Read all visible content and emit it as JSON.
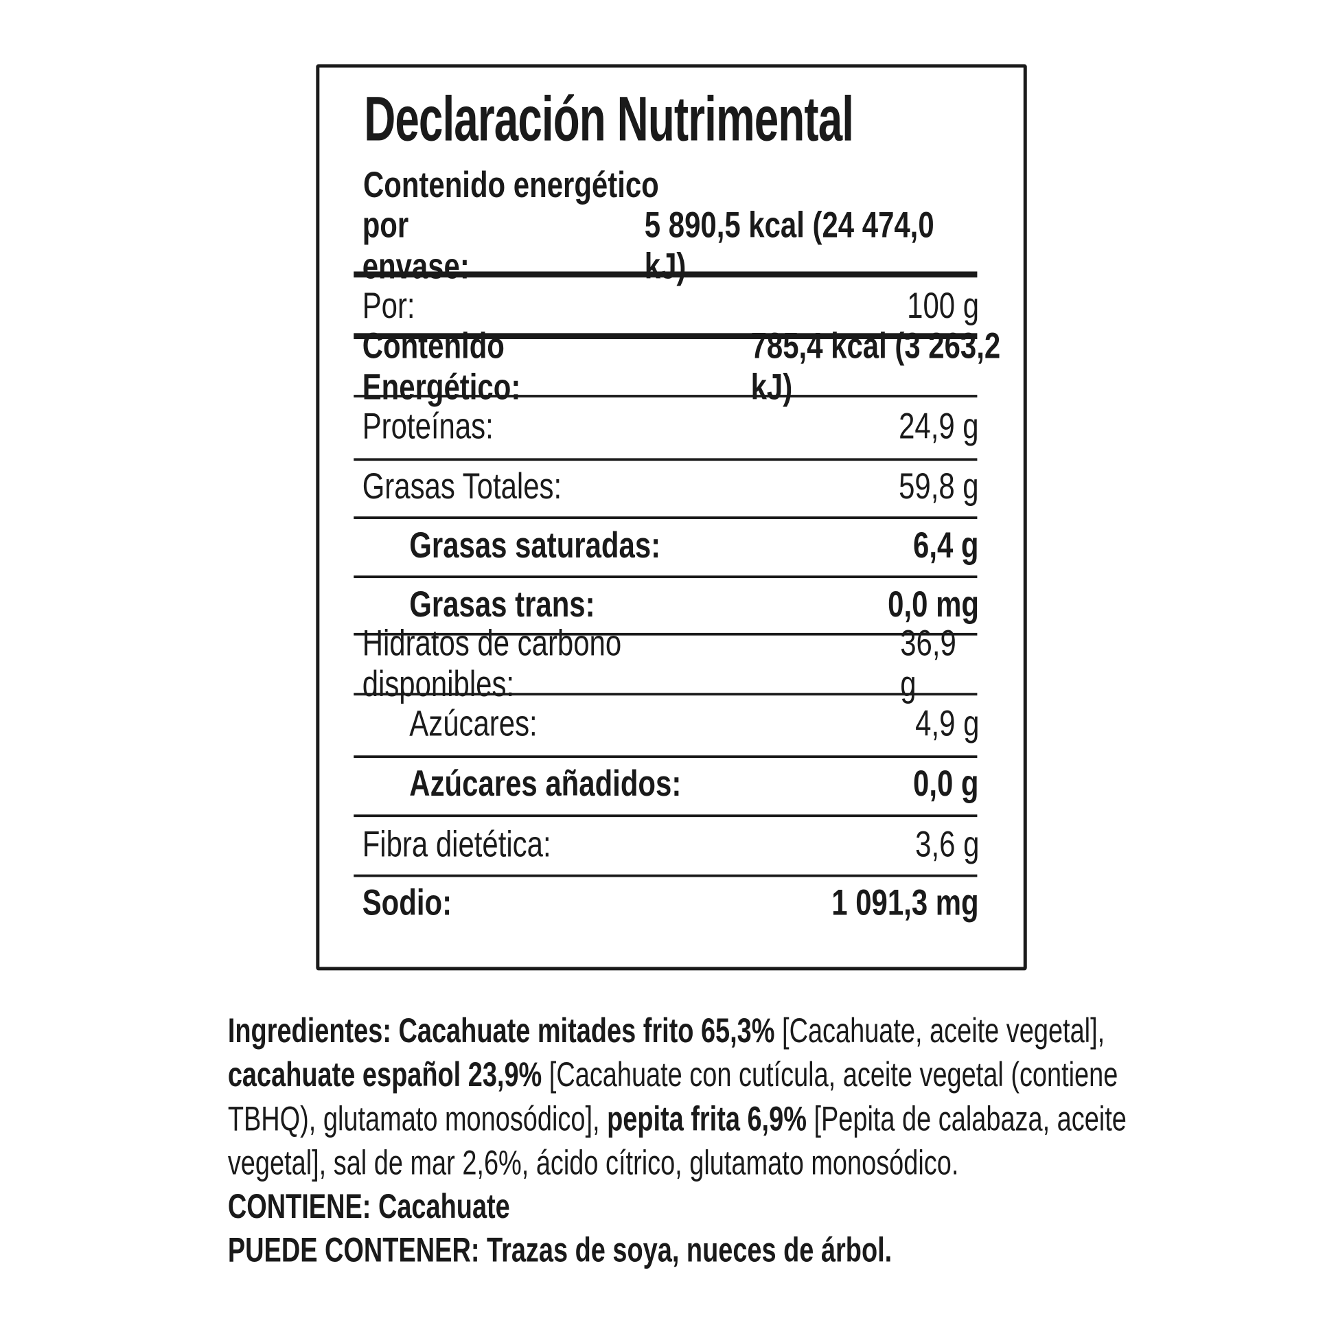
{
  "label": {
    "title": "Declaración Nutrimental",
    "energy_heading": "Contenido energético",
    "per_package_label": "por envase:",
    "per_package_value": "5 890,5 kcal (24 474,0 kJ)",
    "portion_label": "Por:",
    "portion_value": "100 g",
    "energy_label": "Contenido Energético:",
    "energy_value": "785,4 kcal (3 263,2 kJ)",
    "rows": [
      {
        "label": "Proteínas:",
        "value": "24,9 g"
      },
      {
        "label": "Grasas Totales:",
        "value": "59,8 g"
      },
      {
        "label": "Grasas saturadas:",
        "value": "6,4 g"
      },
      {
        "label": "Grasas trans:",
        "value": "0,0 mg"
      },
      {
        "label": "Hidratos de carbono disponibles:",
        "value": "36,9 g"
      },
      {
        "label": "Azúcares:",
        "value": "4,9 g"
      },
      {
        "label": "Azúcares añadidos:",
        "value": "0,0 g"
      },
      {
        "label": "Fibra dietética:",
        "value": "3,6 g"
      },
      {
        "label": "Sodio:",
        "value": "1 091,3 mg"
      }
    ]
  },
  "ingredients": {
    "l1a": "Ingredientes: Cacahuate mitades frito 65,3%",
    "l1b": " [Cacahuate, aceite vegetal],",
    "l2a": "cacahuate español 23,9%",
    "l2b": " [Cacahuate con cutícula, aceite vegetal (contiene",
    "l3a": "TBHQ), glutamato monosódico], ",
    "l3b": "pepita frita 6,9%",
    "l3c": " [Pepita de calabaza, aceite",
    "l4": "vegetal], sal de mar 2,6%, ácido cítrico, glutamato monosódico.",
    "contains": "CONTIENE: Cacahuate",
    "may_contain": "PUEDE CONTENER:  Trazas de soya, nueces de árbol."
  }
}
